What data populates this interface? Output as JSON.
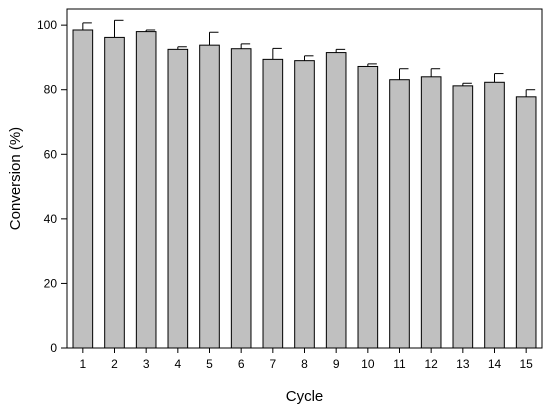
{
  "chart_data": {
    "type": "bar",
    "title": "",
    "xlabel": "Cycle",
    "ylabel": "Conversion (%)",
    "ylim": [
      0,
      105
    ],
    "yticks": [
      0,
      20,
      40,
      60,
      80,
      100
    ],
    "categories": [
      "1",
      "2",
      "3",
      "4",
      "5",
      "6",
      "7",
      "8",
      "9",
      "10",
      "11",
      "12",
      "13",
      "14",
      "15"
    ],
    "values": [
      98.5,
      96.2,
      98.0,
      92.5,
      93.8,
      92.7,
      89.4,
      89.0,
      91.5,
      87.2,
      83.1,
      84.0,
      81.2,
      82.3,
      77.8
    ],
    "error_plus": [
      2.2,
      5.3,
      0.5,
      0.8,
      4.0,
      1.5,
      3.4,
      1.5,
      1.0,
      0.8,
      3.4,
      2.5,
      0.8,
      2.7,
      2.2
    ],
    "grid": false,
    "bar_color": "#c0c0c0",
    "edge_color": "#000000"
  }
}
